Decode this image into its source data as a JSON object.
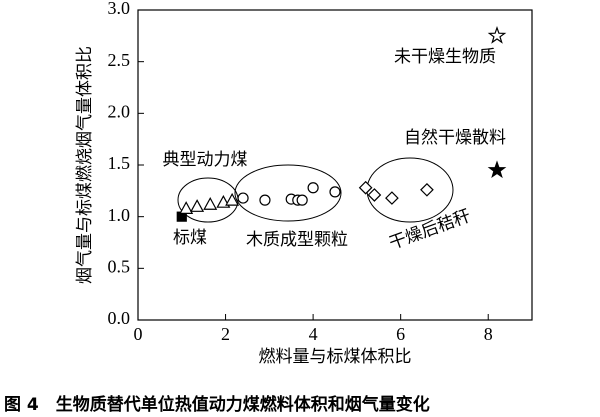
{
  "chart_data": {
    "type": "scatter",
    "xlabel": "燃料量与标煤体积比",
    "ylabel": "烟气量与标煤燃烧烟气量体积比",
    "caption": "图 4　生物质替代单位热值动力煤燃料体积和烟气量变化",
    "xlim": [
      0,
      9
    ],
    "ylim": [
      0,
      3
    ],
    "xticks": [
      0,
      2,
      4,
      6,
      8
    ],
    "yticks": [
      {
        "value": 0,
        "label": "0.0"
      },
      0.5,
      {
        "value": 1,
        "label": "1.0"
      },
      1.5,
      {
        "value": 2,
        "label": "2.0"
      },
      2.5,
      {
        "value": 3,
        "label": "3.0"
      }
    ],
    "grid": false,
    "series": [
      {
        "name": "标煤",
        "color": "#000000",
        "marker": "square-filled",
        "x": [
          1.0
        ],
        "values": [
          1.0
        ]
      },
      {
        "name": "典型动力煤",
        "color": "#000000",
        "marker": "triangle-open",
        "x": [
          1.1,
          1.35,
          1.65,
          1.95,
          2.15
        ],
        "values": [
          1.08,
          1.1,
          1.12,
          1.14,
          1.16
        ]
      },
      {
        "name": "木质成型颗粒",
        "color": "#000000",
        "marker": "circle-open",
        "x": [
          2.4,
          2.9,
          3.5,
          3.65,
          3.75,
          4.0,
          4.5
        ],
        "values": [
          1.18,
          1.16,
          1.17,
          1.16,
          1.16,
          1.28,
          1.24
        ]
      },
      {
        "name": "干燥后秸秆",
        "color": "#000000",
        "marker": "diamond-open",
        "x": [
          5.2,
          5.4,
          5.8,
          6.6
        ],
        "values": [
          1.28,
          1.21,
          1.18,
          1.26
        ]
      },
      {
        "name": "自然干燥散料",
        "color": "#000000",
        "marker": "star-filled",
        "x": [
          8.2
        ],
        "values": [
          1.45
        ]
      },
      {
        "name": "未干燥生物质",
        "color": "#000000",
        "marker": "star-open",
        "x": [
          8.2
        ],
        "values": [
          2.75
        ]
      }
    ]
  }
}
